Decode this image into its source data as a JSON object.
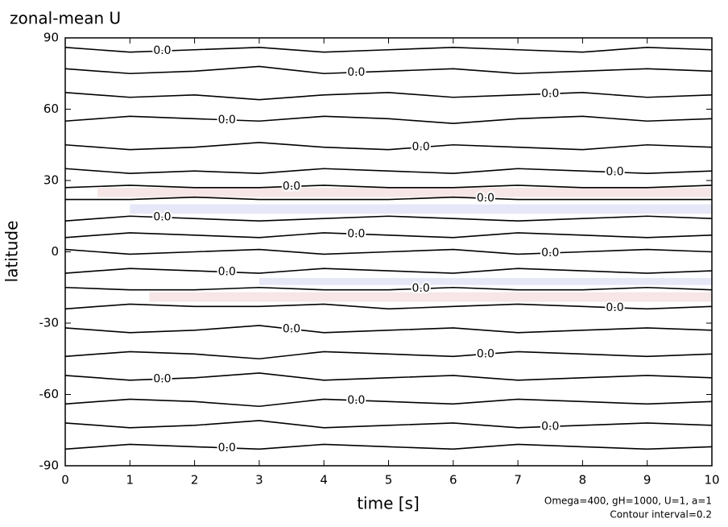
{
  "chart_data": {
    "type": "contour",
    "title": "zonal-mean U",
    "x_label": "time [s]",
    "y_label": "latitude",
    "annotations": [
      "Omega=400, gH=1000, U=1, a=1",
      "Contour interval=0.2"
    ],
    "xlim": [
      0,
      10
    ],
    "xticks": [
      0,
      1,
      2,
      3,
      4,
      5,
      6,
      7,
      8,
      9,
      10
    ],
    "ylim": [
      -90,
      90
    ],
    "yticks": [
      -90,
      -60,
      -30,
      0,
      30,
      60,
      90
    ],
    "line_color": "#000000",
    "bands": [
      {
        "color": "#f7e6e6",
        "x": [
          0.5,
          10
        ],
        "y_low": [
          23,
          23
        ],
        "y_high": [
          27,
          27
        ]
      },
      {
        "color": "#e6e8f7",
        "x": [
          1,
          10
        ],
        "y_low": [
          16,
          16
        ],
        "y_high": [
          20,
          20
        ]
      },
      {
        "color": "#f7e6e6",
        "x": [
          1.3,
          10
        ],
        "y_low": [
          -21,
          -21
        ],
        "y_high": [
          -17,
          -17
        ]
      },
      {
        "color": "#e6e8f7",
        "x": [
          3,
          10
        ],
        "y_low": [
          -14,
          -14
        ],
        "y_high": [
          -11,
          -11
        ]
      }
    ],
    "contours": [
      {
        "level": 0,
        "label": "0.0",
        "x": [
          0,
          1,
          2,
          3,
          4,
          5,
          6,
          7,
          8,
          9,
          10
        ],
        "y": [
          86,
          84,
          85,
          86,
          84,
          85,
          86,
          85,
          84,
          86,
          85
        ]
      },
      {
        "level": 0,
        "label": "0.0",
        "x": [
          0,
          1,
          2,
          3,
          4,
          5,
          6,
          7,
          8,
          9,
          10
        ],
        "y": [
          77,
          75,
          76,
          78,
          75,
          76,
          77,
          75,
          76,
          77,
          76
        ]
      },
      {
        "level": 0,
        "label": "0.0",
        "x": [
          0,
          1,
          2,
          3,
          4,
          5,
          6,
          7,
          8,
          9,
          10
        ],
        "y": [
          67,
          65,
          66,
          64,
          66,
          67,
          65,
          66,
          67,
          65,
          66
        ]
      },
      {
        "level": 0,
        "label": "0.0",
        "x": [
          0,
          1,
          2,
          3,
          4,
          5,
          6,
          7,
          8,
          9,
          10
        ],
        "y": [
          55,
          57,
          56,
          55,
          57,
          56,
          54,
          56,
          57,
          55,
          56
        ]
      },
      {
        "level": 0,
        "label": "0.0",
        "x": [
          0,
          1,
          2,
          3,
          4,
          5,
          6,
          7,
          8,
          9,
          10
        ],
        "y": [
          45,
          43,
          44,
          46,
          44,
          43,
          45,
          44,
          43,
          45,
          44
        ]
      },
      {
        "level": 0,
        "label": "0.0",
        "x": [
          0,
          1,
          2,
          3,
          4,
          5,
          6,
          7,
          8,
          9,
          10
        ],
        "y": [
          35,
          33,
          34,
          33,
          35,
          34,
          33,
          35,
          34,
          33,
          34
        ]
      },
      {
        "level": 0,
        "label": "0.0",
        "x": [
          0,
          1,
          2,
          3,
          4,
          5,
          6,
          7,
          8,
          9,
          10
        ],
        "y": [
          27,
          28,
          27,
          27,
          28,
          27,
          27,
          28,
          27,
          27,
          28
        ]
      },
      {
        "level": 0,
        "label": "0.0",
        "x": [
          0,
          1,
          2,
          3,
          4,
          5,
          6,
          7,
          8,
          9,
          10
        ],
        "y": [
          22,
          22,
          23,
          22,
          22,
          22,
          23,
          22,
          22,
          22,
          22
        ]
      },
      {
        "level": 0,
        "label": "0.0",
        "x": [
          0,
          1,
          2,
          3,
          4,
          5,
          6,
          7,
          8,
          9,
          10
        ],
        "y": [
          13,
          15,
          14,
          13,
          14,
          15,
          14,
          13,
          14,
          15,
          14
        ]
      },
      {
        "level": 0,
        "label": "0.0",
        "x": [
          0,
          1,
          2,
          3,
          4,
          5,
          6,
          7,
          8,
          9,
          10
        ],
        "y": [
          6,
          8,
          7,
          6,
          8,
          7,
          6,
          8,
          7,
          6,
          7
        ]
      },
      {
        "level": 0,
        "label": "0.0",
        "x": [
          0,
          1,
          2,
          3,
          4,
          5,
          6,
          7,
          8,
          9,
          10
        ],
        "y": [
          1,
          -1,
          0,
          1,
          -1,
          0,
          1,
          -1,
          0,
          1,
          0
        ]
      },
      {
        "level": 0,
        "label": "0.0",
        "x": [
          0,
          1,
          2,
          3,
          4,
          5,
          6,
          7,
          8,
          9,
          10
        ],
        "y": [
          -9,
          -7,
          -8,
          -9,
          -7,
          -8,
          -9,
          -7,
          -8,
          -9,
          -8
        ]
      },
      {
        "level": 0,
        "label": "0.0",
        "x": [
          0,
          1,
          2,
          3,
          4,
          5,
          6,
          7,
          8,
          9,
          10
        ],
        "y": [
          -15,
          -16,
          -16,
          -15,
          -16,
          -16,
          -15,
          -16,
          -16,
          -15,
          -16
        ]
      },
      {
        "level": 0,
        "label": "0.0",
        "x": [
          0,
          1,
          2,
          3,
          4,
          5,
          6,
          7,
          8,
          9,
          10
        ],
        "y": [
          -24,
          -22,
          -23,
          -23,
          -22,
          -24,
          -23,
          -22,
          -23,
          -24,
          -23
        ]
      },
      {
        "level": 0,
        "label": "0.0",
        "x": [
          0,
          1,
          2,
          3,
          4,
          5,
          6,
          7,
          8,
          9,
          10
        ],
        "y": [
          -32,
          -34,
          -33,
          -31,
          -34,
          -33,
          -32,
          -34,
          -33,
          -32,
          -33
        ]
      },
      {
        "level": 0,
        "label": "0.0",
        "x": [
          0,
          1,
          2,
          3,
          4,
          5,
          6,
          7,
          8,
          9,
          10
        ],
        "y": [
          -44,
          -42,
          -43,
          -45,
          -42,
          -43,
          -44,
          -42,
          -43,
          -44,
          -43
        ]
      },
      {
        "level": 0,
        "label": "0.0",
        "x": [
          0,
          1,
          2,
          3,
          4,
          5,
          6,
          7,
          8,
          9,
          10
        ],
        "y": [
          -52,
          -54,
          -53,
          -51,
          -54,
          -53,
          -52,
          -54,
          -53,
          -52,
          -53
        ]
      },
      {
        "level": 0,
        "label": "0.0",
        "x": [
          0,
          1,
          2,
          3,
          4,
          5,
          6,
          7,
          8,
          9,
          10
        ],
        "y": [
          -64,
          -62,
          -63,
          -65,
          -62,
          -63,
          -64,
          -62,
          -63,
          -64,
          -63
        ]
      },
      {
        "level": 0,
        "label": "0.0",
        "x": [
          0,
          1,
          2,
          3,
          4,
          5,
          6,
          7,
          8,
          9,
          10
        ],
        "y": [
          -72,
          -74,
          -73,
          -71,
          -74,
          -73,
          -72,
          -74,
          -73,
          -72,
          -73
        ]
      },
      {
        "level": 0,
        "label": "0.0",
        "x": [
          0,
          1,
          2,
          3,
          4,
          5,
          6,
          7,
          8,
          9,
          10
        ],
        "y": [
          -83,
          -81,
          -82,
          -83,
          -81,
          -82,
          -83,
          -81,
          -82,
          -83,
          -82
        ]
      }
    ]
  }
}
